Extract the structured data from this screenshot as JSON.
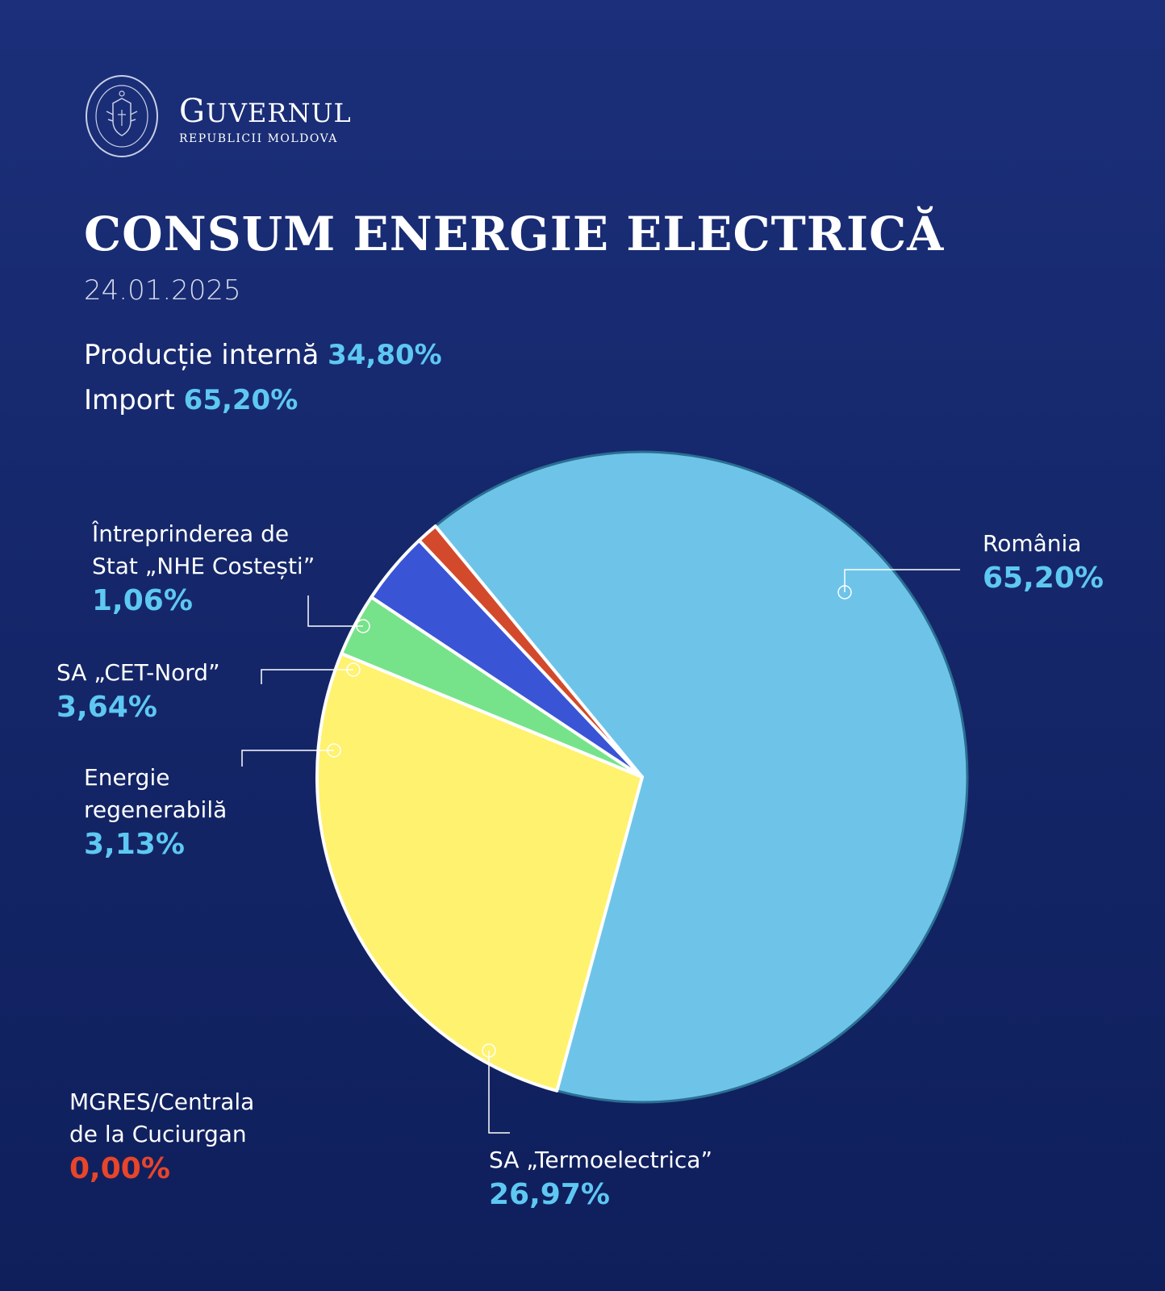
{
  "header": {
    "org_name": "GUVERNUL",
    "org_sub": "REPUBLICII MOLDOVA",
    "seal_text": "GUVERNUL REPUBLICII MOLDOVA"
  },
  "title": "CONSUM ENERGIE ELECTRICĂ",
  "date": "24.01.2025",
  "summary": {
    "domestic_label": "Producție internă",
    "domestic_value": "34,80%",
    "import_label": "Import",
    "import_value": "65,20%"
  },
  "colors": {
    "accent": "#5ec8f2",
    "zero": "#e8452a"
  },
  "chart_data": {
    "type": "pie",
    "title": "CONSUM ENERGIE ELECTRICĂ",
    "slices": [
      {
        "name": "România",
        "value": 65.2,
        "label": "65,20%",
        "color": "#6ec4e8"
      },
      {
        "name": "Întreprinderea de Stat „NHE Costești”",
        "value": 1.06,
        "label": "1,06%",
        "color": "#d24a2b"
      },
      {
        "name": "SA „CET-Nord”",
        "value": 3.64,
        "label": "3,64%",
        "color": "#3a54d6"
      },
      {
        "name": "Energie regenerabilă",
        "value": 3.13,
        "label": "3,13%",
        "color": "#76e38a"
      },
      {
        "name": "SA „Termoelectrica”",
        "value": 26.97,
        "label": "26,97%",
        "color": "#fff26e"
      },
      {
        "name": "MGRES/Centrala de la Cuciurgan",
        "value": 0.0,
        "label": "0,00%",
        "color": "#e8452a"
      }
    ]
  },
  "labels": {
    "romania": {
      "line1": "România",
      "pct": "65,20%"
    },
    "nhe": {
      "line1": "Întreprinderea de",
      "line2": "Stat „NHE Costești”",
      "pct": "1,06%"
    },
    "cet": {
      "line1": "SA „CET-Nord”",
      "pct": "3,64%"
    },
    "regen": {
      "line1": "Energie",
      "line2": "regenerabilă",
      "pct": "3,13%"
    },
    "termo": {
      "line1": "SA „Termoelectrica”",
      "pct": "26,97%"
    },
    "mgres": {
      "line1": "MGRES/Centrala",
      "line2": "de la Cuciurgan",
      "pct": "0,00%"
    }
  }
}
